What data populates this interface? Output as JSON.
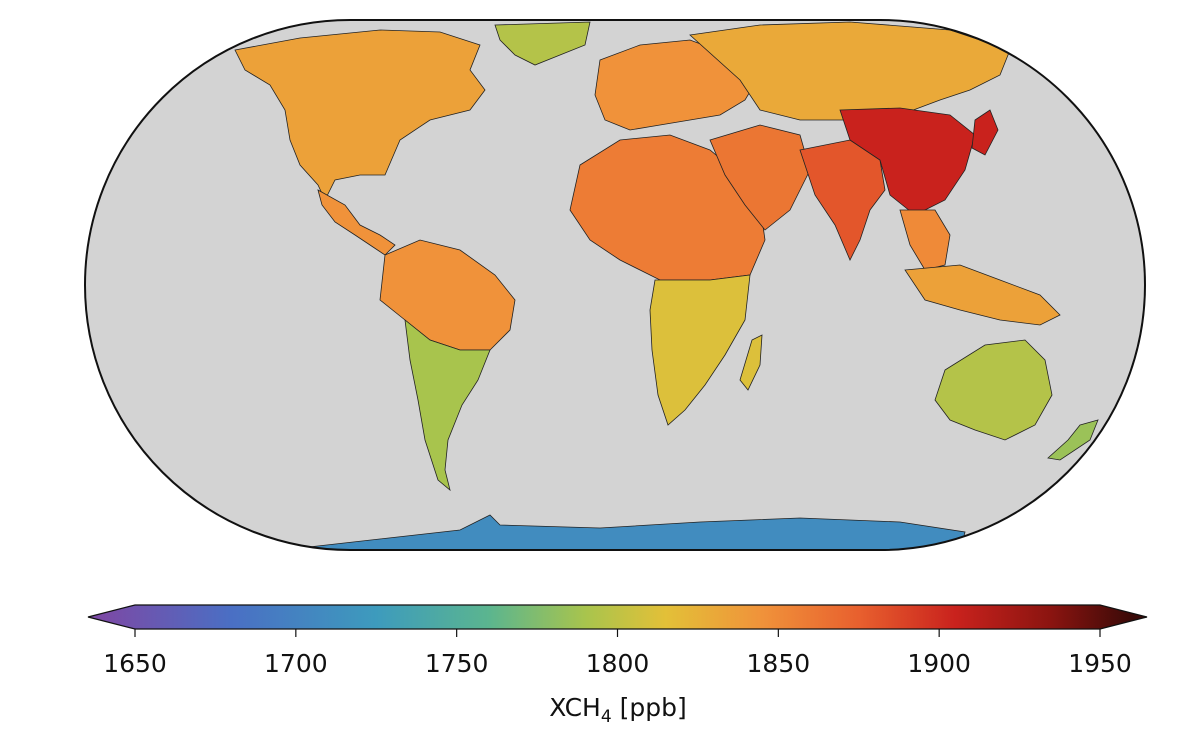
{
  "map": {
    "projection": "Eckert IV",
    "background_color": "#d3d3d3",
    "outline_color": "#111111",
    "regions": [
      {
        "name": "north-america",
        "level": 1835
      },
      {
        "name": "greenland",
        "level": 1795
      },
      {
        "name": "central-america",
        "level": 1845
      },
      {
        "name": "south-america-north",
        "level": 1845
      },
      {
        "name": "south-america-south",
        "level": 1790
      },
      {
        "name": "europe",
        "level": 1845
      },
      {
        "name": "russia-siberia",
        "level": 1830
      },
      {
        "name": "africa-north",
        "level": 1858
      },
      {
        "name": "africa-south",
        "level": 1812
      },
      {
        "name": "middle-east",
        "level": 1862
      },
      {
        "name": "india",
        "level": 1880
      },
      {
        "name": "china-east",
        "level": 1905
      },
      {
        "name": "southeast-asia",
        "level": 1850
      },
      {
        "name": "indonesia",
        "level": 1835
      },
      {
        "name": "australia",
        "level": 1795
      },
      {
        "name": "new-zealand",
        "level": 1785
      },
      {
        "name": "antarctica",
        "level": 1710
      }
    ]
  },
  "colorbar": {
    "min": 1640,
    "max": 1960,
    "extend": "both",
    "ticks": [
      "1650",
      "1700",
      "1750",
      "1800",
      "1850",
      "1900",
      "1950"
    ],
    "tick_values": [
      1650,
      1700,
      1750,
      1800,
      1850,
      1900,
      1950
    ],
    "colormap_stops": [
      {
        "value": 1640,
        "color": "#7b4aa6"
      },
      {
        "value": 1680,
        "color": "#4a6fc4"
      },
      {
        "value": 1725,
        "color": "#3d9bbd"
      },
      {
        "value": 1760,
        "color": "#5bb58f"
      },
      {
        "value": 1790,
        "color": "#a8c44d"
      },
      {
        "value": 1815,
        "color": "#e3c038"
      },
      {
        "value": 1845,
        "color": "#f0923a"
      },
      {
        "value": 1875,
        "color": "#e8602e"
      },
      {
        "value": 1905,
        "color": "#c9221d"
      },
      {
        "value": 1935,
        "color": "#8a1410"
      },
      {
        "value": 1960,
        "color": "#3a0a08"
      }
    ],
    "label_main": "XCH",
    "label_sub": "4",
    "label_unit": " [ppb]"
  }
}
